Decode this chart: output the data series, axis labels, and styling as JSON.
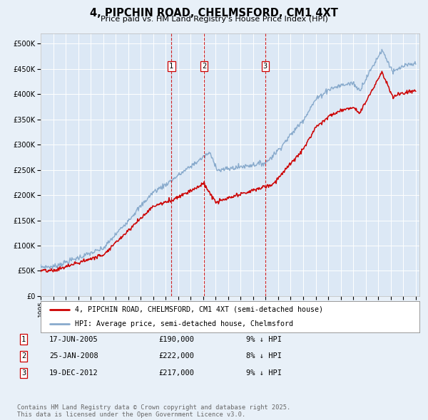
{
  "title": "4, PIPCHIN ROAD, CHELMSFORD, CM1 4XT",
  "subtitle": "Price paid vs. HM Land Registry's House Price Index (HPI)",
  "background_color": "#e8f0f8",
  "plot_bg_color": "#dce8f5",
  "ylim": [
    0,
    520000
  ],
  "yticks": [
    0,
    50000,
    100000,
    150000,
    200000,
    250000,
    300000,
    350000,
    400000,
    450000,
    500000
  ],
  "xstart_year": 1995,
  "xend_year": 2025,
  "vline_years": [
    2005.46,
    2008.07,
    2012.97
  ],
  "vline_labels": [
    "1",
    "2",
    "3"
  ],
  "sale_dates": [
    "17-JUN-2005",
    "25-JAN-2008",
    "19-DEC-2012"
  ],
  "sale_prices": [
    190000,
    222000,
    217000
  ],
  "sale_hpi_diff": [
    "9% ↓ HPI",
    "8% ↓ HPI",
    "9% ↓ HPI"
  ],
  "legend_line1": "4, PIPCHIN ROAD, CHELMSFORD, CM1 4XT (semi-detached house)",
  "legend_line2": "HPI: Average price, semi-detached house, Chelmsford",
  "footnote": "Contains HM Land Registry data © Crown copyright and database right 2025.\nThis data is licensed under the Open Government Licence v3.0.",
  "line_color_red": "#cc0000",
  "line_color_blue": "#88aacc",
  "grid_color": "#ffffff"
}
